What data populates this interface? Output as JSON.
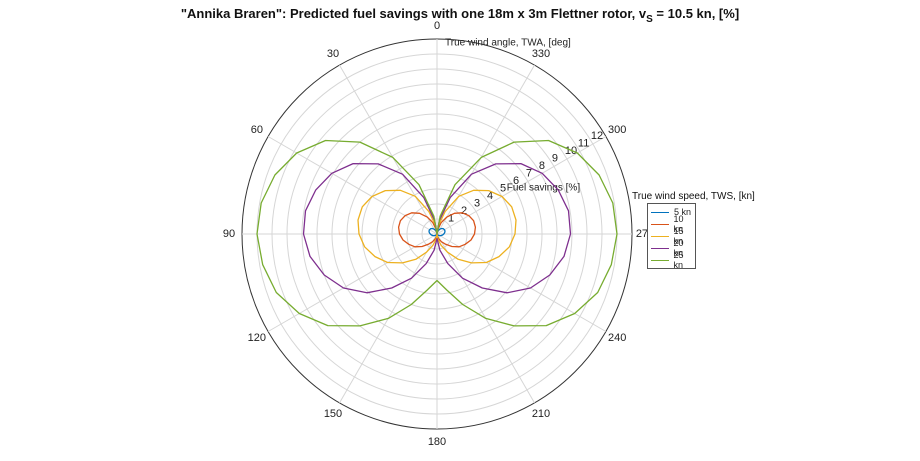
{
  "title": {
    "prefix": "\"Annika Braren\": Predicted fuel savings with one 18m x 3m Flettner rotor, v",
    "subscript": "S",
    "suffix": " = 10.5 kn, [%]"
  },
  "chart_data": {
    "type": "polar-line",
    "title": "\"Annika Braren\": Predicted fuel savings with one 18m x 3m Flettner rotor, vS = 10.5 kn, [%]",
    "theta_label": "True wind angle, TWA, [deg]",
    "r_label": "Fuel savings [%]",
    "theta_ticks": [
      0,
      30,
      60,
      90,
      120,
      150,
      180,
      210,
      240,
      270,
      300,
      330
    ],
    "theta_direction": "counterclockwise",
    "theta_zero": "top",
    "r_ticks": [
      1,
      2,
      3,
      4,
      5,
      6,
      7,
      8,
      9,
      10,
      11,
      12
    ],
    "r_range": [
      0,
      13
    ],
    "grid": true,
    "legend_title": "True wind speed, TWS, [kn]",
    "legend_position": "right",
    "series": [
      {
        "name": "5 kn",
        "color": "#0072BD",
        "theta": [
          0,
          10,
          20,
          30,
          40,
          50,
          60,
          70,
          80,
          90,
          100,
          110,
          120,
          130,
          140,
          150,
          160,
          170,
          180
        ],
        "r": [
          0,
          0.12,
          0.25,
          0.38,
          0.48,
          0.55,
          0.58,
          0.57,
          0.52,
          0.45,
          0.38,
          0.3,
          0.22,
          0.15,
          0.09,
          0.05,
          0.02,
          0.01,
          0
        ]
      },
      {
        "name": "10 kn",
        "color": "#D95319",
        "theta": [
          0,
          10,
          20,
          30,
          40,
          50,
          60,
          70,
          80,
          90,
          100,
          110,
          120,
          130,
          140,
          150,
          160,
          170,
          180
        ],
        "r": [
          0,
          0.3,
          0.8,
          1.3,
          1.8,
          2.2,
          2.45,
          2.6,
          2.6,
          2.5,
          2.3,
          2.0,
          1.7,
          1.3,
          0.9,
          0.6,
          0.35,
          0.15,
          0
        ]
      },
      {
        "name": "15 kn",
        "color": "#EDB120",
        "theta": [
          0,
          10,
          20,
          30,
          40,
          50,
          60,
          70,
          80,
          90,
          100,
          110,
          120,
          130,
          140,
          150,
          160,
          170,
          180
        ],
        "r": [
          0,
          0.6,
          1.6,
          2.9,
          3.8,
          4.5,
          5.0,
          5.3,
          5.35,
          5.2,
          4.9,
          4.4,
          3.8,
          3.0,
          2.2,
          1.4,
          0.8,
          0.35,
          0
        ]
      },
      {
        "name": "20 kn",
        "color": "#7E2F8E",
        "theta": [
          0,
          10,
          20,
          30,
          40,
          50,
          60,
          70,
          80,
          90,
          100,
          110,
          120,
          130,
          140,
          150,
          160,
          170,
          180
        ],
        "r": [
          0,
          0.9,
          2.6,
          4.6,
          6.1,
          7.3,
          8.1,
          8.6,
          8.9,
          8.9,
          8.6,
          8.0,
          7.2,
          6.1,
          4.7,
          3.4,
          2.1,
          1.1,
          0.3
        ]
      },
      {
        "name": "25 kn",
        "color": "#77AC30",
        "theta": [
          0,
          10,
          20,
          30,
          40,
          50,
          60,
          70,
          80,
          90,
          100,
          110,
          120,
          130,
          140,
          150,
          160,
          170,
          180
        ],
        "r": [
          0,
          1.2,
          3.5,
          5.9,
          8.0,
          9.7,
          10.8,
          11.5,
          11.9,
          12.0,
          11.8,
          11.4,
          10.6,
          9.5,
          8.0,
          6.5,
          5.0,
          3.8,
          3.1
        ]
      }
    ]
  }
}
